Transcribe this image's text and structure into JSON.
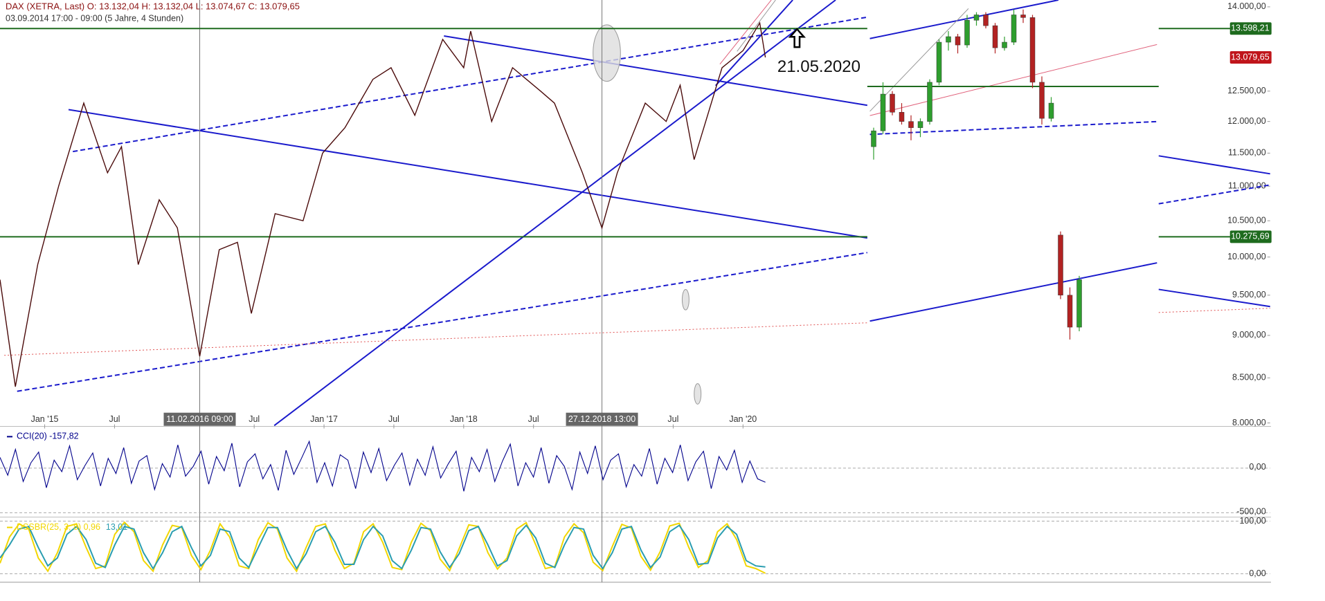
{
  "chart_data": [
    {
      "type": "line",
      "title": "DAX (XETRA, Last)  O: 13.132,04  H: 13.132,04  L: 13.074,67  C: 13.079,65",
      "subtitle": "03.09.2014 17:00 - 09:00  (5 Jahre, 4 Stunden)",
      "x": [
        2014.68,
        2014.79,
        2014.95,
        2015.1,
        2015.28,
        2015.45,
        2015.55,
        2015.67,
        2015.82,
        2015.95,
        2016.11,
        2016.25,
        2016.38,
        2016.48,
        2016.65,
        2016.85,
        2016.99,
        2017.15,
        2017.35,
        2017.48,
        2017.65,
        2017.85,
        2018.0,
        2018.05,
        2018.2,
        2018.35,
        2018.55,
        2018.65,
        2018.85,
        2018.99,
        2019.1,
        2019.3,
        2019.45,
        2019.55,
        2019.65,
        2019.85,
        2020.0,
        2020.12,
        2020.16
      ],
      "values": [
        9700,
        8400,
        9900,
        11000,
        12300,
        11200,
        11600,
        9900,
        10800,
        10400,
        8750,
        10100,
        10200,
        9270,
        10600,
        10500,
        11500,
        11900,
        12700,
        12900,
        12100,
        13400,
        12900,
        13550,
        12000,
        12900,
        12500,
        12300,
        11200,
        10400,
        11200,
        12300,
        12000,
        12600,
        11400,
        12900,
        13200,
        13700,
        13079.65
      ],
      "color": "#4a0a0a",
      "xlim": [
        2014.68,
        2020.89
      ],
      "xticks": [
        {
          "value": 2015.0,
          "label": "Jan '15"
        },
        {
          "value": 2015.5,
          "label": "Jul"
        },
        {
          "value": 2016.5,
          "label": "Jul"
        },
        {
          "value": 2017.0,
          "label": "Jan '17"
        },
        {
          "value": 2017.5,
          "label": "Jul"
        },
        {
          "value": 2018.0,
          "label": "Jan '18"
        },
        {
          "value": 2018.5,
          "label": "Jul"
        },
        {
          "value": 2019.5,
          "label": "Jul"
        },
        {
          "value": 2020.0,
          "label": "Jan '20"
        }
      ],
      "ylim": [
        8000,
        14000
      ],
      "log_scale": true,
      "yticks": [
        {
          "value": 8000,
          "label": "8.000,00"
        },
        {
          "value": 8500,
          "label": "8.500,00"
        },
        {
          "value": 9000,
          "label": "9.000,00"
        },
        {
          "value": 9500,
          "label": "9.500,00"
        },
        {
          "value": 10000,
          "label": "10.000,00"
        },
        {
          "value": 10500,
          "label": "10.500,00"
        },
        {
          "value": 11000,
          "label": "11.000,00"
        },
        {
          "value": 11500,
          "label": "11.500,00"
        },
        {
          "value": 12000,
          "label": "12.000,00"
        },
        {
          "value": 12500,
          "label": "12.500,00"
        },
        {
          "value": 14000,
          "label": "14.000,00"
        }
      ],
      "hlines": [
        {
          "value": 13598.21,
          "label": "13.598,21",
          "color": "#1e6b1e",
          "line": true
        },
        {
          "value": 13079.65,
          "label": "13.079,65",
          "color": "#c0151b",
          "line": false
        },
        {
          "value": 10275.69,
          "label": "10.275,69",
          "color": "#1e6b1e",
          "line": true
        }
      ],
      "markers": [
        {
          "x": 2016.11,
          "label": "11.02.2016 09:00"
        },
        {
          "x": 2018.99,
          "label": "27.12.2018 13:00"
        }
      ],
      "annotation": "21.05.2020",
      "candles": {
        "categories": [
          null,
          null,
          null,
          null,
          null,
          null,
          null,
          null,
          null,
          null,
          null,
          null,
          null,
          null,
          null,
          null,
          null,
          null,
          null,
          null,
          null,
          null,
          null
        ],
        "open": [
          11600,
          11850,
          12450,
          12150,
          12000,
          11900,
          12000,
          12650,
          13350,
          13450,
          13300,
          13750,
          13850,
          13650,
          13250,
          13350,
          13850,
          13800,
          12650,
          12050,
          10300,
          9500,
          9100
        ],
        "high": [
          11900,
          12650,
          12500,
          12300,
          12100,
          12050,
          12700,
          13400,
          13550,
          13500,
          13850,
          13900,
          13900,
          13700,
          13450,
          13950,
          13950,
          13850,
          12750,
          12400,
          10350,
          9600,
          9750
        ],
        "low": [
          11400,
          11800,
          12100,
          11950,
          11700,
          11750,
          11950,
          12600,
          13200,
          13150,
          13250,
          13650,
          13600,
          13150,
          13200,
          13300,
          13700,
          12550,
          11950,
          12000,
          9450,
          8950,
          9050
        ],
        "close": [
          11850,
          12450,
          12150,
          12000,
          11900,
          12000,
          12650,
          13350,
          13450,
          13300,
          13750,
          13850,
          13650,
          13250,
          13350,
          13850,
          13800,
          12650,
          12050,
          12300,
          9500,
          9100,
          9700
        ],
        "up_color": "#2e9e2e",
        "down_color": "#b22222"
      }
    },
    {
      "type": "line",
      "legend_label": "CCI(20) -157,82",
      "color": "#00008b",
      "values": [
        120,
        -80,
        210,
        -150,
        60,
        180,
        -220,
        90,
        -40,
        250,
        -130,
        30,
        170,
        -200,
        110,
        -60,
        230,
        -170,
        80,
        140,
        -240,
        50,
        -100,
        260,
        -90,
        20,
        190,
        -180,
        130,
        -30,
        280,
        -210,
        70,
        160,
        -120,
        40,
        -250,
        200,
        -70,
        110,
        300,
        -160,
        60,
        -200,
        150,
        90,
        -230,
        180,
        -50,
        220,
        -140,
        30,
        170,
        -190,
        100,
        -80,
        240,
        -110,
        50,
        190,
        -260,
        120,
        -40,
        210,
        -150,
        80,
        270,
        -200,
        60,
        -100,
        230,
        -170,
        140,
        20,
        -240,
        180,
        -60,
        250,
        -130,
        90,
        160,
        -210,
        40,
        -90,
        220,
        -180,
        110,
        -50,
        260,
        -140,
        70,
        190,
        -230,
        130,
        -20,
        200,
        -160,
        80,
        -120,
        -157.82
      ],
      "ylim": [
        -540,
        420
      ],
      "yticks": [
        {
          "value": 0,
          "label": "0,00"
        },
        {
          "value": -500,
          "label": "-500,00"
        }
      ]
    },
    {
      "type": "line",
      "series": [
        {
          "name": "DSSBR(25, 3, 8) 0,96",
          "color": "#f2d600",
          "values": [
            20,
            70,
            95,
            85,
            30,
            5,
            40,
            90,
            95,
            50,
            10,
            15,
            75,
            98,
            80,
            25,
            5,
            55,
            92,
            88,
            35,
            8,
            45,
            95,
            70,
            15,
            10,
            65,
            97,
            85,
            30,
            5,
            50,
            90,
            95,
            45,
            10,
            20,
            80,
            95,
            60,
            12,
            8,
            60,
            96,
            82,
            28,
            6,
            48,
            93,
            90,
            40,
            9,
            30,
            85,
            97,
            55,
            10,
            14,
            70,
            95,
            78,
            22,
            6,
            52,
            94,
            87,
            33,
            7,
            42,
            91,
            96,
            50,
            12,
            25,
            80,
            95,
            65,
            15,
            10,
            0.96
          ]
        },
        {
          "name": "13,01",
          "color": "#2a9db0",
          "values": [
            30,
            55,
            85,
            90,
            50,
            15,
            30,
            75,
            90,
            65,
            20,
            12,
            55,
            90,
            85,
            40,
            10,
            40,
            80,
            90,
            50,
            15,
            35,
            85,
            80,
            30,
            12,
            50,
            88,
            88,
            45,
            10,
            38,
            80,
            90,
            60,
            18,
            18,
            65,
            90,
            72,
            25,
            10,
            45,
            88,
            85,
            42,
            12,
            38,
            82,
            90,
            55,
            15,
            25,
            72,
            92,
            68,
            20,
            12,
            55,
            88,
            85,
            35,
            10,
            40,
            85,
            90,
            45,
            12,
            32,
            80,
            92,
            65,
            18,
            20,
            68,
            90,
            75,
            25,
            15,
            13.01
          ]
        }
      ],
      "ylim": [
        -16,
        106
      ],
      "yticks": [
        {
          "value": 100,
          "label": "100,00"
        },
        {
          "value": 0,
          "label": "0,00"
        }
      ]
    }
  ]
}
